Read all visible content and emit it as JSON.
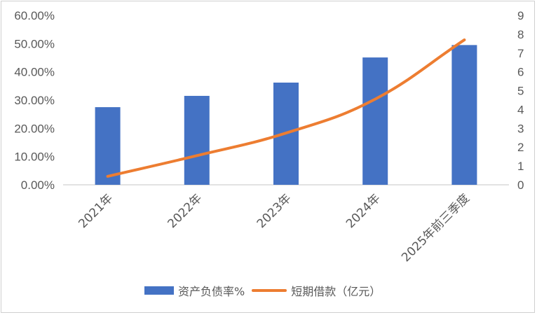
{
  "colors": {
    "bar": "#4472C4",
    "line": "#ED7D31",
    "axis": "#d9d9d9",
    "text": "#595959"
  },
  "chart_data": {
    "type": "bar",
    "categories": [
      "2021年",
      "2022年",
      "2023年",
      "2024年",
      "2025年前三季度"
    ],
    "series": [
      {
        "name": "资产负债率%",
        "type": "bar",
        "axis": "left",
        "values": [
          0.275,
          0.315,
          0.362,
          0.451,
          0.495
        ]
      },
      {
        "name": "短期借款（亿元）",
        "type": "line",
        "axis": "right",
        "values": [
          0.45,
          1.55,
          2.75,
          4.55,
          7.7
        ]
      }
    ],
    "y_left": {
      "lim": [
        0,
        0.6
      ],
      "ticks": [
        "0.00%",
        "10.00%",
        "20.00%",
        "30.00%",
        "40.00%",
        "50.00%",
        "60.00%"
      ]
    },
    "y_right": {
      "lim": [
        0,
        9
      ],
      "ticks": [
        "0",
        "1",
        "2",
        "3",
        "4",
        "5",
        "6",
        "7",
        "8",
        "9"
      ]
    },
    "grid": false,
    "legend": "bottom"
  }
}
